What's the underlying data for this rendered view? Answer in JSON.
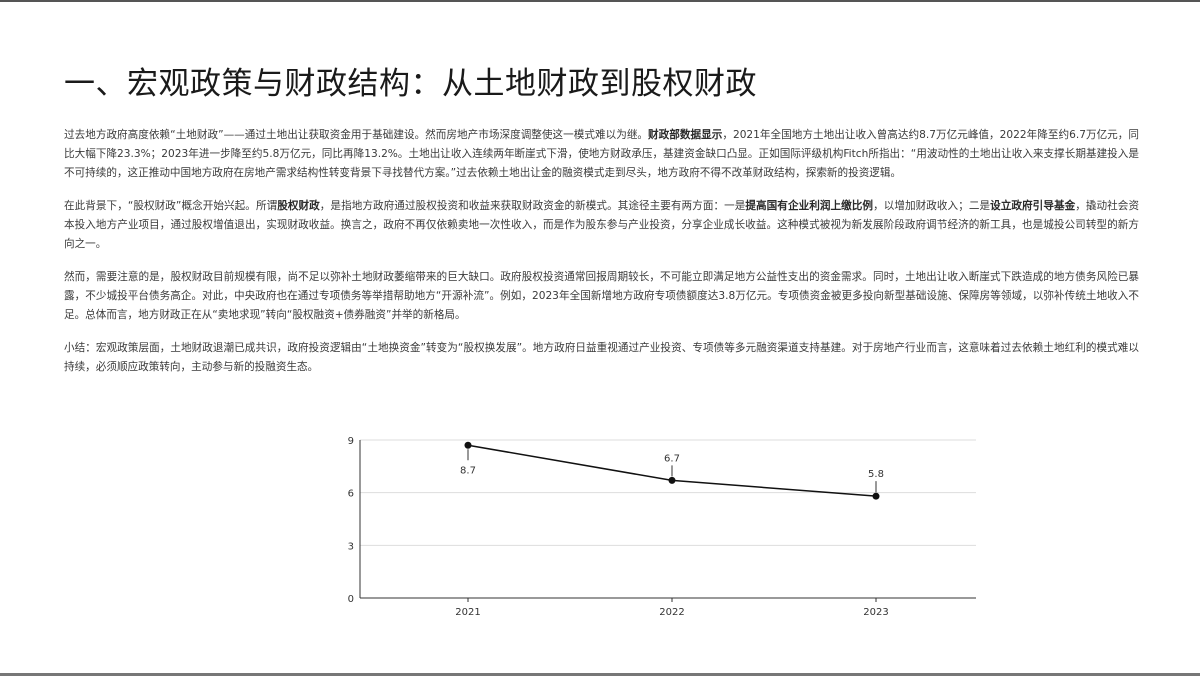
{
  "title": "一、宏观政策与财政结构：从土地财政到股权财政",
  "paragraphs": [
    {
      "runs": [
        {
          "text": "过去地方政府高度依赖“土地财政”——通过土地出让获取资金用于基础建设。然而房地产市场深度调整使这一模式难以为继。",
          "bold": false
        },
        {
          "text": "财政部数据显示",
          "bold": true
        },
        {
          "text": "，2021年全国地方土地出让收入曾高达约8.7万亿元峰值，2022年降至约6.7万亿元，同比大幅下降23.3%；2023年进一步降至约5.8万亿元，同比再降13.2%。土地出让收入连续两年断崖式下滑，使地方财政承压，基建资金缺口凸显。正如国际评级机构Fitch所指出：“用波动性的土地出让收入来支撑长期基建投入是不可持续的，这正推动中国地方政府在房地产需求结构性转变背景下寻找替代方案。”过去依赖土地出让金的融资模式走到尽头，地方政府不得不改革财政结构，探索新的投资逻辑。",
          "bold": false
        }
      ]
    },
    {
      "runs": [
        {
          "text": "在此背景下，“股权财政”概念开始兴起。所谓",
          "bold": false
        },
        {
          "text": "股权财政",
          "bold": true
        },
        {
          "text": "，是指地方政府通过股权投资和收益来获取财政资金的新模式。其途径主要有两方面：一是",
          "bold": false
        },
        {
          "text": "提高国有企业利润上缴比例",
          "bold": true
        },
        {
          "text": "，以增加财政收入；二是",
          "bold": false
        },
        {
          "text": "设立政府引导基金",
          "bold": true
        },
        {
          "text": "，撬动社会资本投入地方产业项目，通过股权增值退出，实现财政收益。换言之，政府不再仅依赖卖地一次性收入，而是作为股东参与产业投资，分享企业成长收益。这种模式被视为新发展阶段政府调节经济的新工具，也是城投公司转型的新方向之一。",
          "bold": false
        }
      ]
    },
    {
      "runs": [
        {
          "text": "然而，需要注意的是，股权财政目前规模有限，尚不足以弥补土地财政萎缩带来的巨大缺口。政府股权投资通常回报周期较长，不可能立即满足地方公益性支出的资金需求。同时，土地出让收入断崖式下跌造成的地方债务风险已暴露，不少城投平台债务高企。对此，中央政府也在通过专项债务等举措帮助地方“开源补流”。例如，2023年全国新增地方政府专项债额度达3.8万亿元。专项债资金被更多投向新型基础设施、保障房等领域，以弥补传统土地收入不足。总体而言，地方财政正在从“卖地求现”转向“股权融资+债券融资”并举的新格局。",
          "bold": false
        }
      ]
    },
    {
      "runs": [
        {
          "text": "小结：宏观政策层面，土地财政退潮已成共识，政府投资逻辑由“土地换资金”转变为“股权换发展”。地方政府日益重视通过产业投资、专项债等多元融资渠道支持基建。对于房地产行业而言，这意味着过去依赖土地红利的模式难以持续，必须顺应政策转向，主动参与新的投融资生态。",
          "bold": false
        }
      ]
    }
  ],
  "chart_data": {
    "type": "line",
    "x": [
      "2021",
      "2022",
      "2023"
    ],
    "series": [
      {
        "values": [
          8.7,
          6.7,
          5.8
        ]
      }
    ],
    "data_labels": [
      "8.7",
      "6.7",
      "5.8"
    ],
    "yticks": [
      0,
      3,
      6,
      9
    ],
    "ylim": [
      0,
      9
    ],
    "grid": true,
    "legend": "none",
    "colors": {
      "line": "#111111",
      "grid": "#dddddd",
      "axis": "#333333"
    }
  }
}
